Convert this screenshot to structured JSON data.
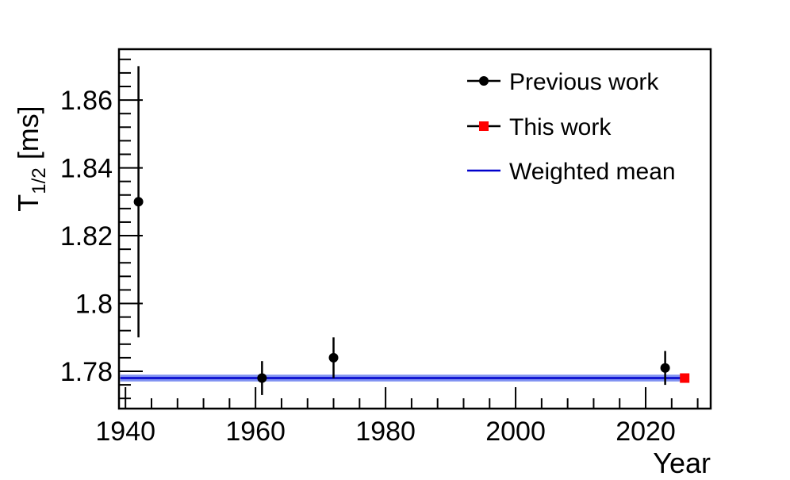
{
  "chart_data": {
    "type": "scatter",
    "xlabel": "Year",
    "ylabel_main": "T",
    "ylabel_sub": "1/2",
    "ylabel_unit": " [ms]",
    "xlim": [
      1939,
      2030
    ],
    "ylim": [
      1.769,
      1.875
    ],
    "x_ticks": [
      1940,
      1960,
      1980,
      2000,
      2020
    ],
    "x_tick_labels": [
      "1940",
      "1960",
      "1980",
      "2000",
      "2020"
    ],
    "y_ticks": [
      1.78,
      1.8,
      1.82,
      1.84,
      1.86
    ],
    "y_tick_labels": [
      "1.78",
      "1.8",
      "1.82",
      "1.84",
      "1.86"
    ],
    "grid": false,
    "legend_position": "top-right",
    "series": [
      {
        "name": "Previous work",
        "color": "#000000",
        "marker": "circle",
        "points": [
          {
            "x": 1942,
            "y": 1.83,
            "err": 0.04
          },
          {
            "x": 1961,
            "y": 1.778,
            "err": 0.005
          },
          {
            "x": 1972,
            "y": 1.784,
            "err": 0.006
          },
          {
            "x": 2023,
            "y": 1.781,
            "err": 0.005
          }
        ]
      },
      {
        "name": "This work",
        "color": "#ff0000",
        "marker": "square",
        "points": [
          {
            "x": 2026,
            "y": 1.778,
            "err": 0.0
          }
        ]
      },
      {
        "name": "Weighted mean",
        "color": "#0000cc",
        "band_color": "#6a7ff0",
        "type": "hline",
        "y": 1.778,
        "band": [
          1.777,
          1.779
        ],
        "x_range": [
          1939.2,
          2026
        ]
      }
    ]
  }
}
